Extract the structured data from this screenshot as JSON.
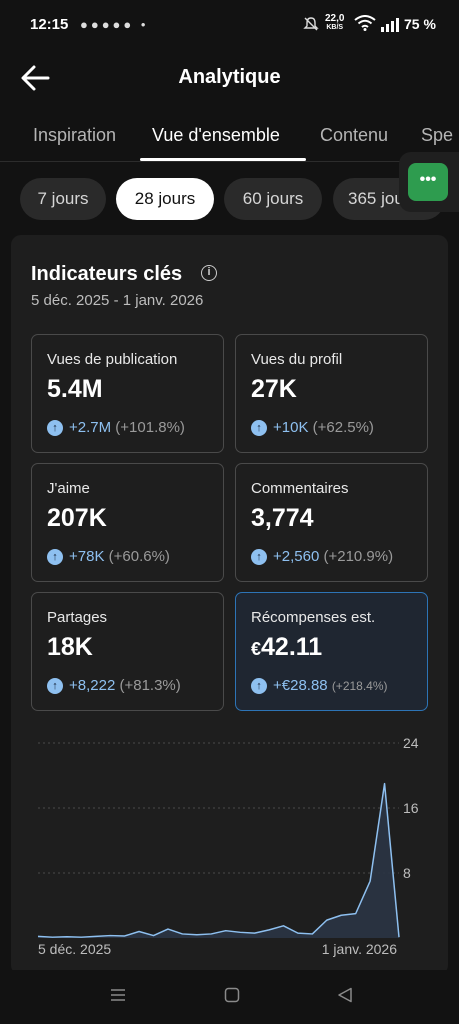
{
  "status_bar": {
    "time": "12:15",
    "notification_icons": "●●●●● •",
    "net_speed": "22,0",
    "net_unit": "KB/S",
    "battery": "75 %"
  },
  "header": {
    "title": "Analytique"
  },
  "tabs": [
    {
      "label": "Inspiration"
    },
    {
      "label": "Vue d'ensemble"
    },
    {
      "label": "Contenu"
    },
    {
      "label": "Spe"
    }
  ],
  "chips": [
    {
      "label": "7 jours"
    },
    {
      "label": "28 jours"
    },
    {
      "label": "60 jours"
    },
    {
      "label": "365 jours"
    }
  ],
  "float_button": {
    "label": "•••"
  },
  "card": {
    "title": "Indicateurs clés",
    "date_range": "5 déc. 2025 - 1 janv. 2026",
    "metrics": [
      {
        "label": "Vues de publication",
        "value": "5.4M",
        "delta": "+2.7M",
        "pct": "(+101.8%)"
      },
      {
        "label": "Vues du profil",
        "value": "27K",
        "delta": "+10K",
        "pct": "(+62.5%)"
      },
      {
        "label": "J'aime",
        "value": "207K",
        "delta": "+78K",
        "pct": "(+60.6%)"
      },
      {
        "label": "Commentaires",
        "value": "3,774",
        "delta": "+2,560",
        "pct": "(+210.9%)"
      },
      {
        "label": "Partages",
        "value": "18K",
        "delta": "+8,222",
        "pct": "(+81.3%)"
      },
      {
        "label": "Récompenses est.",
        "currency": "€",
        "value": "42.11",
        "delta": "+€28.88",
        "pct": "(+218.4%)"
      }
    ]
  },
  "chart_data": {
    "type": "area",
    "x_labels": [
      "5 déc. 2025",
      "1 janv. 2026"
    ],
    "y_ticks": [
      "24",
      "16",
      "8"
    ],
    "ylim": [
      0,
      24
    ],
    "values": [
      0.2,
      0.1,
      0.15,
      0.1,
      0.2,
      0.3,
      0.25,
      0.8,
      0.3,
      1.1,
      0.5,
      0.4,
      0.5,
      0.9,
      0.7,
      0.6,
      1.0,
      1.5,
      0.6,
      0.5,
      2.2,
      2.8,
      3.0,
      7.0,
      19.0,
      0.1
    ],
    "line_color": "#8ec0f0",
    "fill_color": "#2a3444",
    "grid": "dotted"
  }
}
